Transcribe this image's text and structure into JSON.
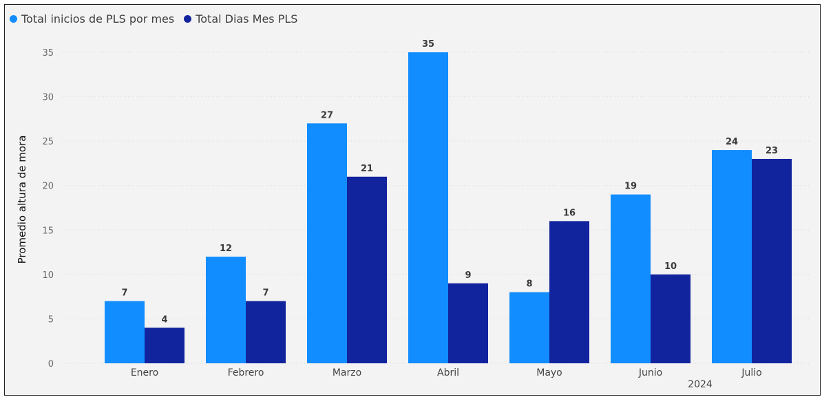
{
  "chart_data": {
    "type": "bar",
    "categories": [
      "Enero",
      "Febrero",
      "Marzo",
      "Abril",
      "Mayo",
      "Junio",
      "Julio"
    ],
    "group_label": "2024",
    "series": [
      {
        "name": "Total inicios de PLS por mes",
        "color": "#118dff",
        "values": [
          7,
          12,
          27,
          35,
          8,
          19,
          24
        ]
      },
      {
        "name": "Total Dias Mes PLS",
        "color": "#12239e",
        "values": [
          4,
          7,
          21,
          9,
          16,
          10,
          23
        ]
      }
    ],
    "ylabel": "Promedio altura de mora",
    "xlabel": "",
    "ylim": [
      0,
      35
    ],
    "yticks": [
      0,
      5,
      10,
      15,
      20,
      25,
      30,
      35
    ],
    "grid": true,
    "legend": "top-left"
  }
}
